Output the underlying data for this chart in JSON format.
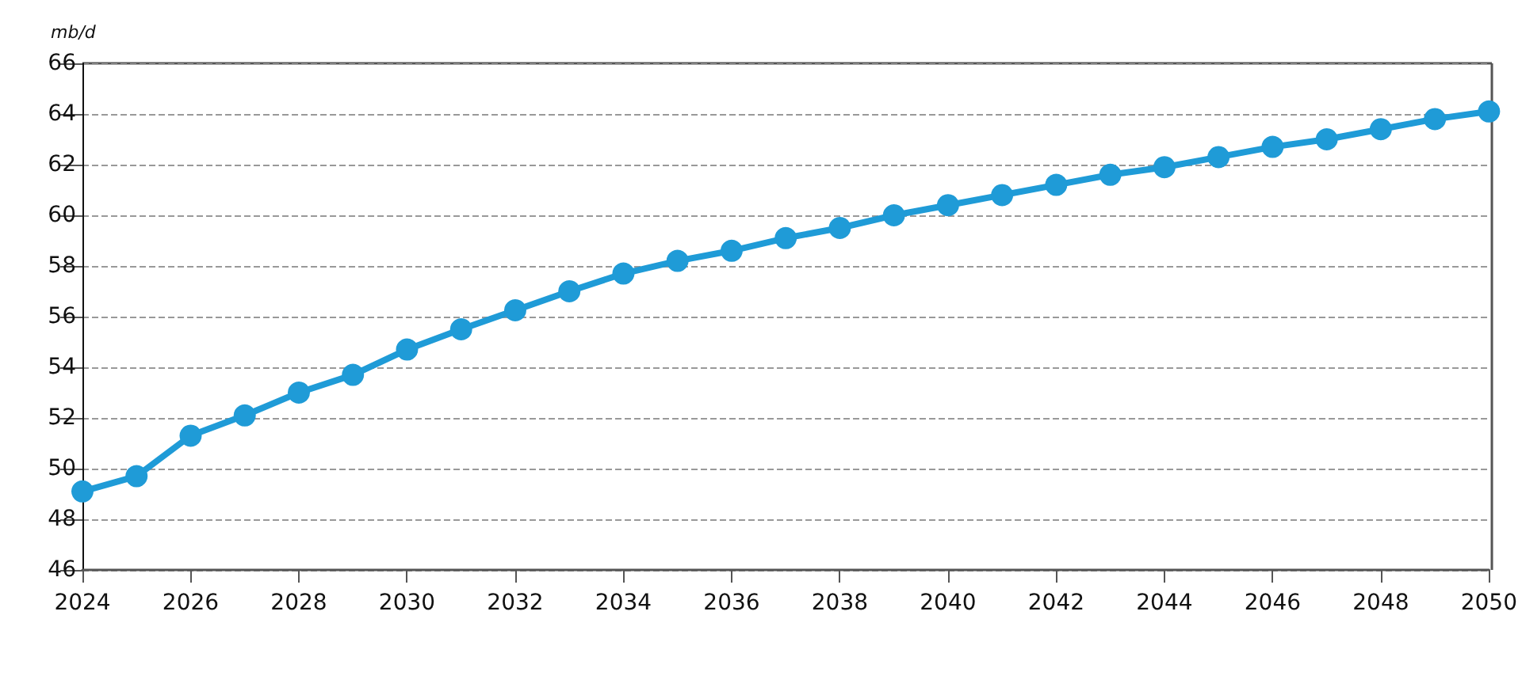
{
  "chart_data": {
    "type": "line",
    "ylabel": "mb/d",
    "x": [
      2024,
      2025,
      2026,
      2027,
      2028,
      2029,
      2030,
      2031,
      2032,
      2033,
      2034,
      2035,
      2036,
      2037,
      2038,
      2039,
      2040,
      2041,
      2042,
      2043,
      2044,
      2045,
      2046,
      2047,
      2048,
      2049,
      2050
    ],
    "series": [
      {
        "color": "#1f9bd7",
        "values": [
          49.1,
          49.7,
          51.3,
          52.1,
          53.0,
          53.7,
          54.7,
          55.5,
          56.25,
          57.0,
          57.7,
          58.2,
          58.6,
          59.1,
          59.5,
          60.0,
          60.4,
          60.8,
          61.2,
          61.6,
          61.9,
          62.3,
          62.7,
          63.0,
          63.4,
          63.8,
          64.1
        ]
      }
    ],
    "xlim": [
      2024,
      2050
    ],
    "xticks": [
      2024,
      2026,
      2028,
      2030,
      2032,
      2034,
      2036,
      2038,
      2040,
      2042,
      2044,
      2046,
      2048,
      2050
    ],
    "ylim": [
      46,
      66
    ],
    "yticks": [
      46,
      48,
      50,
      52,
      54,
      56,
      58,
      60,
      62,
      64,
      66
    ],
    "grid": "y",
    "marker": "circle",
    "line_style": "solid"
  }
}
